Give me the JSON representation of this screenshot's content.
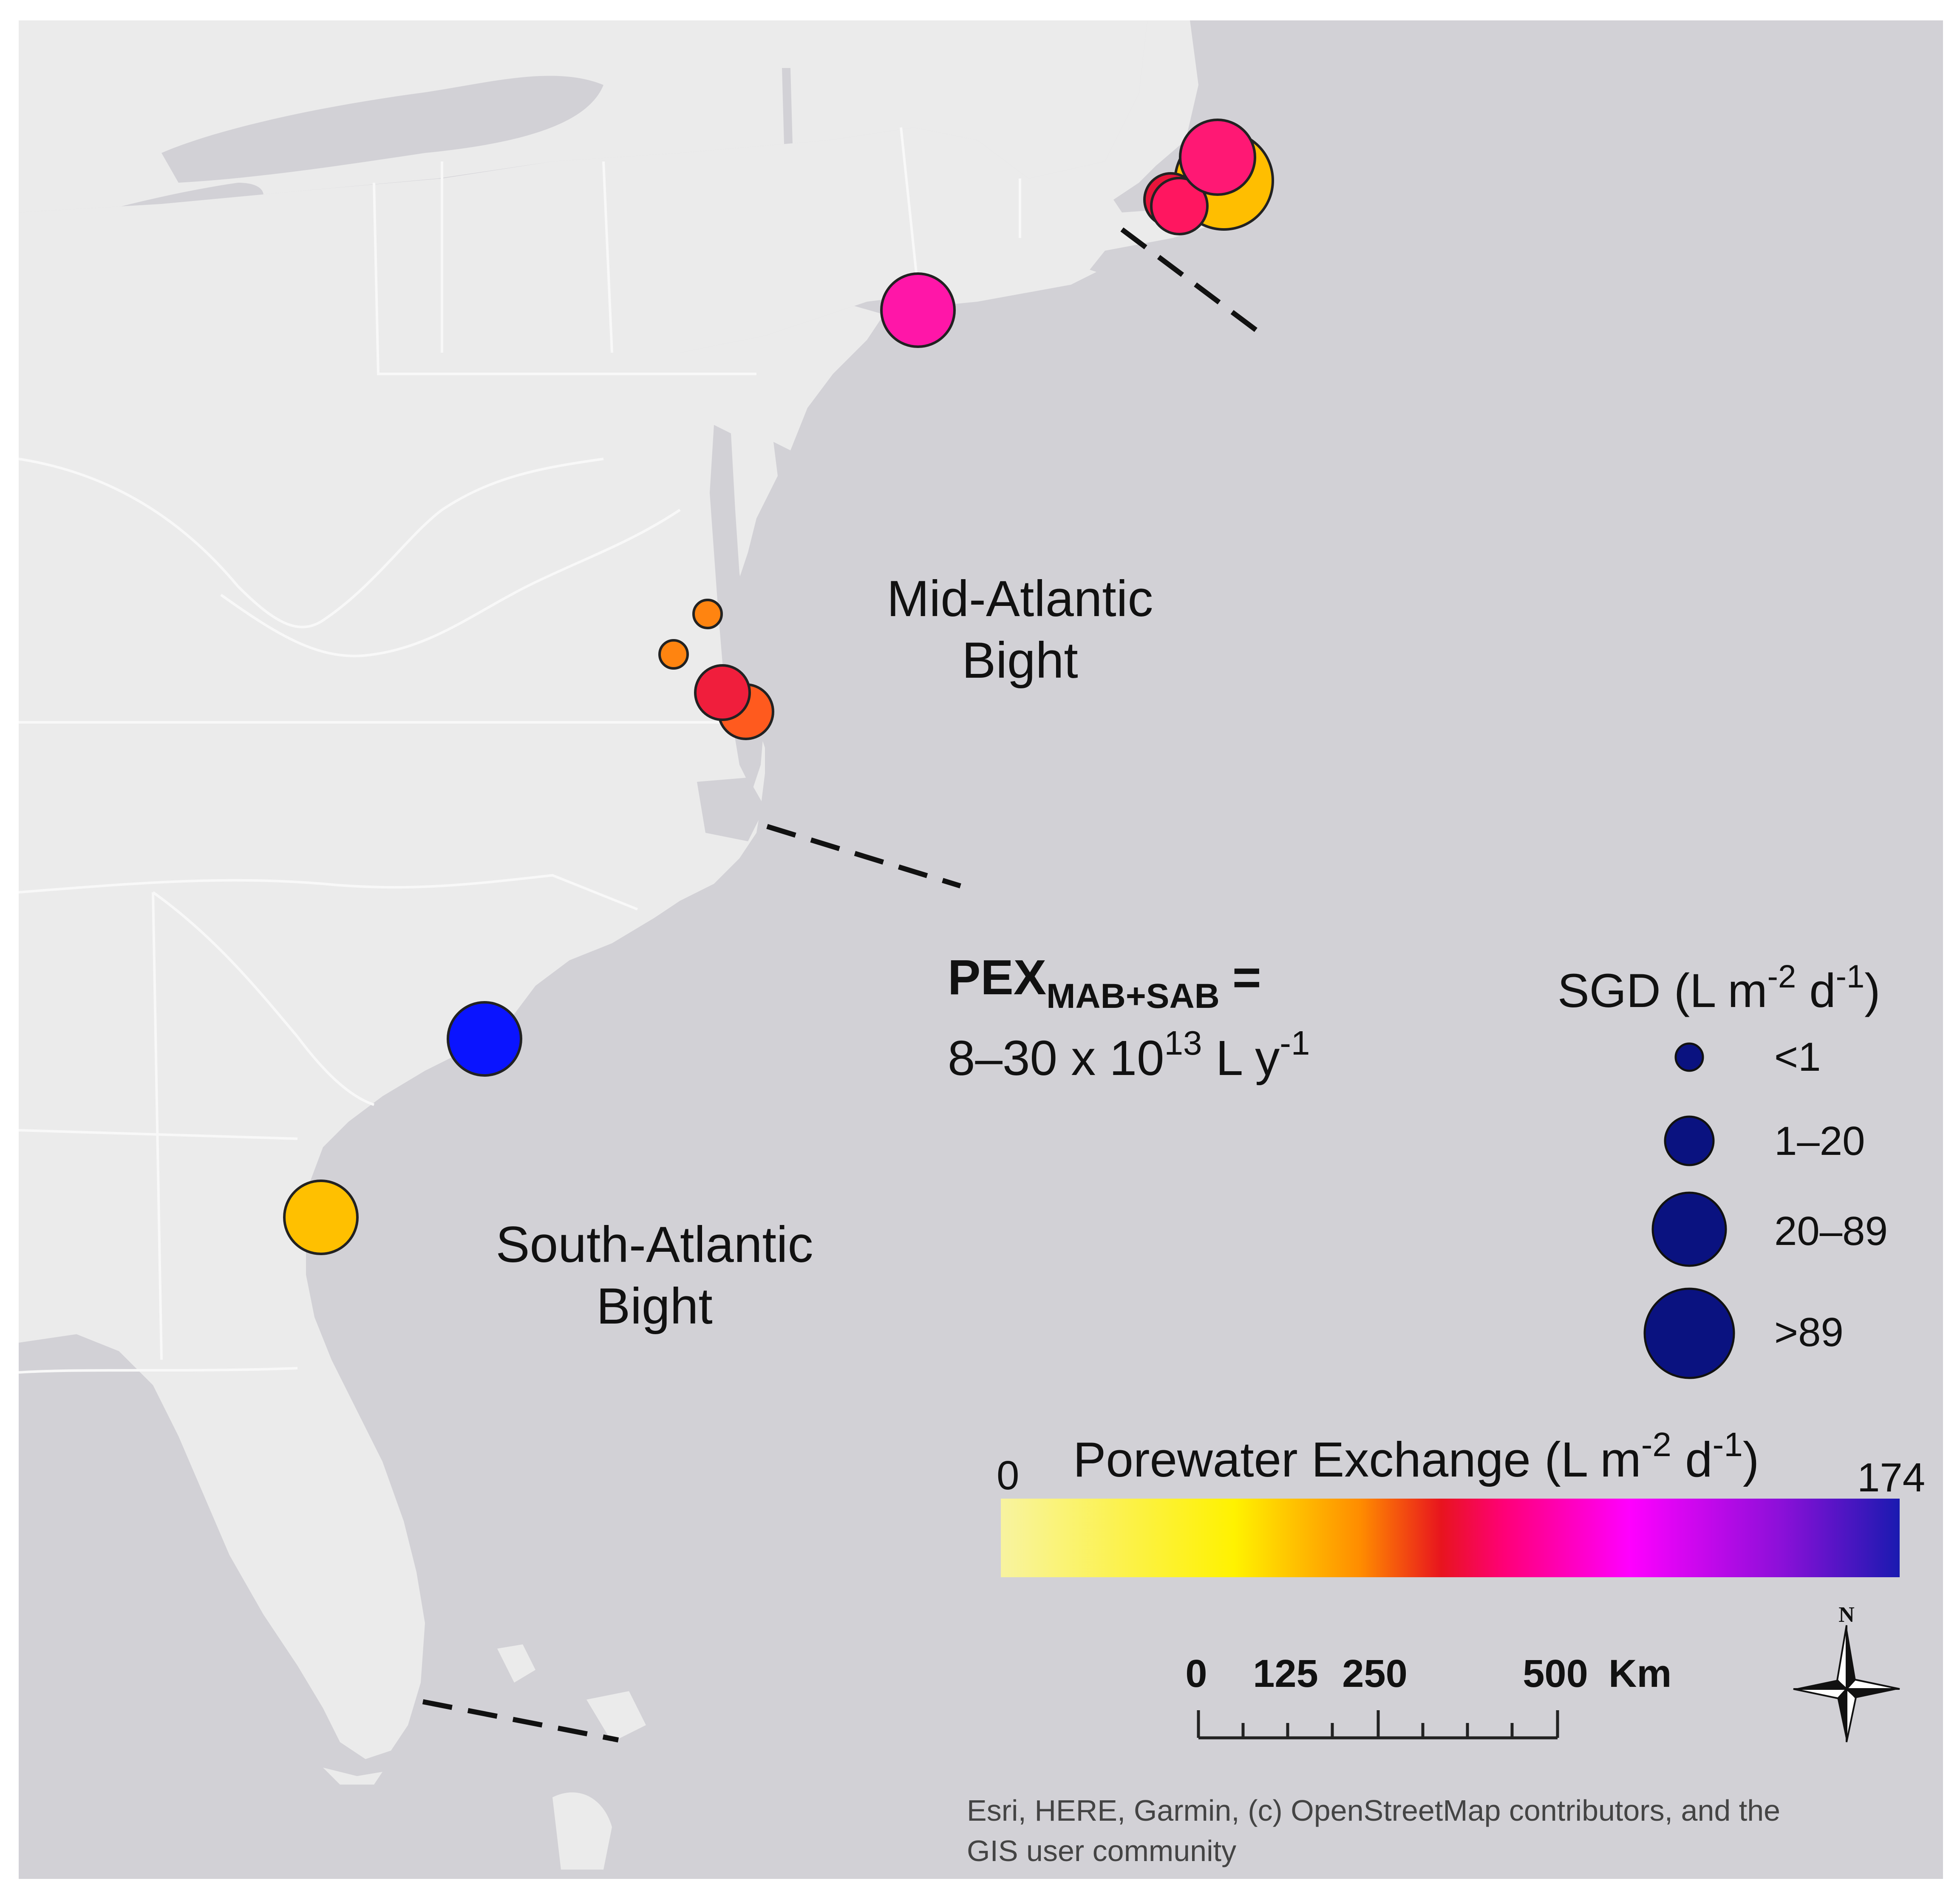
{
  "regions": {
    "mab_line1": "Mid-Atlantic",
    "mab_line2": "Bight",
    "sab_line1": "South-Atlantic",
    "sab_line2": "Bight"
  },
  "pex": {
    "base": "PEX",
    "subscript": "MAB+SAB",
    "equals": "=",
    "value_prefix": "8–30 x 10",
    "value_exp": "13",
    "value_unit": " L y",
    "value_unit_exp": "-1"
  },
  "sgd_legend": {
    "title_prefix": "SGD (L m",
    "title_exp1": "-2",
    "title_mid": " d",
    "title_exp2": "-1",
    "title_suffix": ")",
    "classes": [
      "<1",
      "1–20",
      "20–89",
      ">89"
    ],
    "symbol_color": "#0a1280"
  },
  "pex_legend": {
    "title_prefix": "Porewater Exchange (L m",
    "title_exp1": "-2",
    "title_mid": " d",
    "title_exp2": "-1",
    "title_suffix": ")",
    "min_label": "0",
    "max_label": "174",
    "min_value": 0,
    "max_value": 174,
    "colors": [
      "#f8f3a0",
      "#fff200",
      "#ff8c00",
      "#e8141e",
      "#ff0077",
      "#ff00ff",
      "#8a10d8",
      "#1a1ab0"
    ]
  },
  "scale_bar": {
    "labels": [
      "0",
      "125",
      "250",
      "500"
    ],
    "values_km": [
      0,
      125,
      250,
      500
    ],
    "unit": "Km"
  },
  "north_arrow": {
    "label": "N"
  },
  "attribution": {
    "line1": "Esri, HERE, Garmin, (c) OpenStreetMap contributors, and the",
    "line2": "GIS user community"
  },
  "colors": {
    "ocean": "#d2d1d6",
    "land": "#ebebeb",
    "borders": "#f8f8f8",
    "marker_stroke": "#222222",
    "dash_line": "#111111"
  },
  "map_data": {
    "sites": [
      {
        "name": "site-maine-1",
        "color": "#ffbe00",
        "sgd_class": ">89"
      },
      {
        "name": "site-maine-2",
        "color": "#ff1874",
        "sgd_class": "20–89"
      },
      {
        "name": "site-maine-3",
        "color": "#e8143a",
        "sgd_class": "1–20"
      },
      {
        "name": "site-maine-4",
        "color": "#ff1660",
        "sgd_class": "1–20"
      },
      {
        "name": "site-new-jersey",
        "color": "#ff16a8",
        "sgd_class": "20–89"
      },
      {
        "name": "site-chesapeake-1",
        "color": "#ff8410",
        "sgd_class": "<1"
      },
      {
        "name": "site-chesapeake-2",
        "color": "#ff8410",
        "sgd_class": "<1"
      },
      {
        "name": "site-virginia-1",
        "color": "#ff5a1e",
        "sgd_class": "1–20"
      },
      {
        "name": "site-virginia-2",
        "color": "#f01e3c",
        "sgd_class": "1–20"
      },
      {
        "name": "site-south-carolina",
        "color": "#0a14ff",
        "sgd_class": "20–89"
      },
      {
        "name": "site-georgia",
        "color": "#ffc000",
        "sgd_class": "20–89"
      }
    ]
  }
}
